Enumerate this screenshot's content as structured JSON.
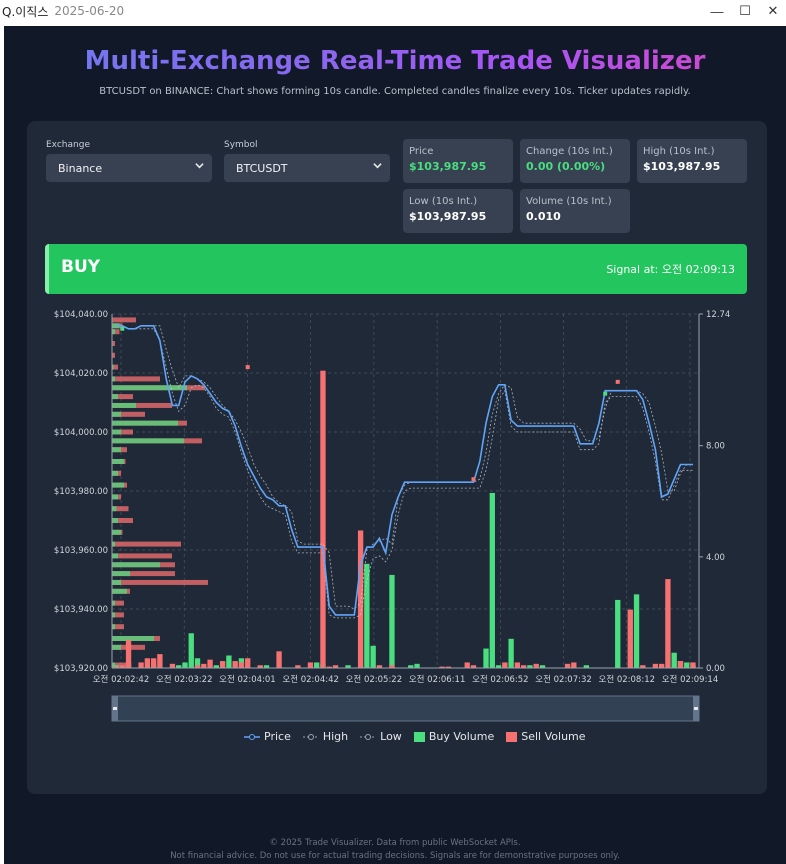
{
  "window": {
    "app_name": "Q.이직스",
    "date": "2025-06-20",
    "minimize": "—",
    "maximize": "☐",
    "close": "✕"
  },
  "header": {
    "title": "Multi-Exchange Real-Time Trade Visualizer",
    "subtitle": "BTCUSDT on BINANCE: Chart shows forming 10s candle. Completed candles finalize every 10s. Ticker updates rapidly."
  },
  "controls": {
    "exchange_label": "Exchange",
    "exchange_value": "Binance",
    "symbol_label": "Symbol",
    "symbol_value": "BTCUSDT"
  },
  "stats": {
    "price_label": "Price",
    "price_value": "$103,987.95",
    "change_label": "Change (10s Int.)",
    "change_value": "0.00 (0.00%)",
    "high_label": "High (10s Int.)",
    "high_value": "$103,987.95",
    "low_label": "Low (10s Int.)",
    "low_value": "$103,987.95",
    "volume_label": "Volume (10s Int.)",
    "volume_value": "0.010"
  },
  "signal": {
    "action": "BUY",
    "signal_at": "Signal at: 오전 02:09:13"
  },
  "legend": {
    "price": "Price",
    "high": "High",
    "low": "Low",
    "buy_volume": "Buy Volume",
    "sell_volume": "Sell Volume"
  },
  "colors": {
    "price": "#60a5fa",
    "buy": "#4ade80",
    "sell": "#f87171",
    "signal_bg": "#22c55e"
  },
  "chart_data": {
    "type": "line",
    "title": "",
    "y_left": {
      "min": 103920,
      "max": 104040,
      "ticks": [
        104040,
        104020,
        104000,
        103980,
        103960,
        103940,
        103920
      ],
      "tick_labels": [
        "$104,040.00",
        "$104,020.00",
        "$104,000.00",
        "$103,980.00",
        "$103,960.00",
        "$103,940.00",
        "$103,920.00"
      ]
    },
    "y_right": {
      "min": 0,
      "max": 12.74,
      "ticks": [
        12.74,
        8.0,
        4.0,
        0.0
      ],
      "tick_labels": [
        "12.74",
        "8.00",
        "4.00",
        "0.00"
      ]
    },
    "x_tick_labels": [
      "오전 02:02:42",
      "오전 02:03:22",
      "오전 02:04:01",
      "오전 02:04:42",
      "오전 02:05:22",
      "오전 02:06:11",
      "오전 02:06:52",
      "오전 02:07:32",
      "오전 02:08:12",
      "오전 02:09:14"
    ],
    "series": [
      {
        "name": "Price",
        "values": [
          104036,
          104036,
          104035,
          104035,
          104036,
          104036,
          104036,
          104031,
          104018,
          104009,
          104009,
          104017,
          104019,
          104018,
          104016,
          104013,
          104010,
          104008,
          104007,
          104002,
          103995,
          103989,
          103985,
          103981,
          103978,
          103977,
          103975,
          103975,
          103967,
          103961,
          103961,
          103961,
          103961,
          103961,
          103941,
          103938,
          103938,
          103938,
          103938,
          103955,
          103961,
          103961,
          103964,
          103959,
          103972,
          103978,
          103983,
          103983,
          103983,
          103983,
          103983,
          103983,
          103983,
          103983,
          103983,
          103983,
          103983,
          103983,
          103990,
          104003,
          104012,
          104016,
          104016,
          104004,
          104002,
          104002,
          104002,
          104002,
          104002,
          104002,
          104002,
          104002,
          104002,
          104002,
          103996,
          103996,
          103996,
          104003,
          104014,
          104014,
          104014,
          104014,
          104014,
          104014,
          104011,
          104003,
          103994,
          103978,
          103979,
          103984,
          103989,
          103989,
          103989
        ]
      },
      {
        "name": "High",
        "values": [
          104036,
          104036,
          104035,
          104035,
          104036,
          104036,
          104036,
          104036,
          104028,
          104021,
          104015,
          104019,
          104019,
          104018,
          104017,
          104015,
          104012,
          104009,
          104007,
          104004,
          104000,
          103995,
          103989,
          103985,
          103982,
          103978,
          103976,
          103975,
          103973,
          103963,
          103962,
          103962,
          103962,
          103962,
          103959,
          103941,
          103941,
          103941,
          103940,
          103942,
          103960,
          103962,
          103963,
          103964,
          103962,
          103978,
          103982,
          103983,
          103983,
          103983,
          103983,
          103983,
          103983,
          103983,
          103983,
          103983,
          103983,
          103983,
          103984,
          103993,
          104006,
          104013,
          104016,
          104015,
          104005,
          104003,
          104003,
          104003,
          104003,
          104003,
          104003,
          104003,
          104003,
          104003,
          104001,
          103997,
          103997,
          103998,
          104008,
          104014,
          104014,
          104014,
          104014,
          104014,
          104013,
          104010,
          104002,
          103993,
          103980,
          103980,
          103986,
          103989,
          103989
        ]
      },
      {
        "name": "Low",
        "values": [
          104036,
          104036,
          104035,
          104035,
          104035,
          104035,
          104035,
          104031,
          104022,
          104013,
          104007,
          104009,
          104015,
          104016,
          104015,
          104012,
          104008,
          104006,
          104005,
          104000,
          103993,
          103987,
          103982,
          103978,
          103975,
          103974,
          103973,
          103972,
          103963,
          103959,
          103959,
          103959,
          103959,
          103959,
          103938,
          103937,
          103937,
          103937,
          103937,
          103938,
          103950,
          103957,
          103958,
          103956,
          103960,
          103972,
          103980,
          103981,
          103981,
          103981,
          103981,
          103981,
          103981,
          103981,
          103981,
          103981,
          103981,
          103981,
          103981,
          103987,
          103998,
          104011,
          104014,
          104002,
          104000,
          104000,
          104000,
          104000,
          104000,
          104000,
          104000,
          104000,
          104000,
          104000,
          103994,
          103994,
          103994,
          103996,
          104010,
          104012,
          104012,
          104012,
          104012,
          104012,
          104008,
          104000,
          103990,
          103977,
          103977,
          103982,
          103987,
          103987,
          103987
        ]
      },
      {
        "name": "Buy Volume",
        "values": [
          0.1,
          0,
          0.2,
          0,
          0,
          0,
          0.15,
          0,
          0,
          0,
          0.1,
          0.2,
          1.25,
          0.35,
          0,
          0,
          0.1,
          0,
          0.45,
          0,
          0.35,
          0,
          0,
          0.05,
          0.1,
          0,
          0,
          0,
          0,
          0,
          0,
          0,
          0.2,
          0.15,
          0,
          0,
          0,
          0.1,
          0,
          0.05,
          3.75,
          0.8,
          0,
          0,
          3.35,
          0,
          0,
          0.1,
          0.15,
          0,
          0,
          0,
          0,
          0,
          0,
          0,
          0,
          0,
          0,
          0.7,
          6.3,
          0.1,
          0,
          1.05,
          0,
          0,
          0.1,
          0,
          0.1,
          0,
          0,
          0,
          0.05,
          0.05,
          0,
          0.1,
          0,
          0,
          0,
          0,
          2.45,
          0,
          0,
          2.65,
          0,
          0,
          0,
          0,
          0,
          0.55,
          0.25,
          0.2,
          0.1
        ]
      },
      {
        "name": "Sell Volume",
        "values": [
          0.05,
          0.1,
          1.0,
          0,
          0.2,
          0.35,
          0.35,
          0.5,
          0,
          0.15,
          0,
          0,
          0,
          0.1,
          0.15,
          0.3,
          0,
          0.25,
          0,
          0.25,
          0.2,
          0.35,
          0,
          0.1,
          0,
          0,
          0.6,
          0,
          0,
          0.1,
          0,
          0.2,
          0,
          10.7,
          0.05,
          0.1,
          0,
          0,
          0,
          4.95,
          0,
          0,
          0.1,
          0,
          0.1,
          0,
          0,
          0,
          0,
          0,
          0,
          0,
          0.05,
          0.05,
          0,
          0,
          0.2,
          0.1,
          0,
          0,
          0,
          0,
          0.2,
          0,
          0.2,
          0.1,
          0,
          0.15,
          0,
          0,
          0,
          0,
          0.15,
          0.2,
          0,
          0,
          0,
          0,
          0,
          0,
          0,
          0,
          2.1,
          0,
          0.1,
          0,
          0.15,
          0.15,
          3.2,
          0,
          0.25,
          0,
          0.2
        ]
      }
    ],
    "volume_profile": [
      {
        "price": 104038,
        "buy": 0,
        "sell": 0.8
      },
      {
        "price": 104036,
        "buy": 0.25,
        "sell": 0.1
      },
      {
        "price": 104034,
        "buy": 0.1,
        "sell": 0.15
      },
      {
        "price": 104030,
        "buy": 0,
        "sell": 0.1
      },
      {
        "price": 104026,
        "buy": 0,
        "sell": 0.1
      },
      {
        "price": 104022,
        "buy": 0.05,
        "sell": 0.15
      },
      {
        "price": 104018,
        "buy": 0.1,
        "sell": 1.5
      },
      {
        "price": 104015,
        "buy": 2.5,
        "sell": 0.6
      },
      {
        "price": 104012,
        "buy": 0.2,
        "sell": 0.5
      },
      {
        "price": 104009,
        "buy": 0.8,
        "sell": 1.2
      },
      {
        "price": 104006,
        "buy": 0.3,
        "sell": 0.8
      },
      {
        "price": 104003,
        "buy": 2.2,
        "sell": 0.3
      },
      {
        "price": 104000,
        "buy": 0.3,
        "sell": 0.4
      },
      {
        "price": 103997,
        "buy": 2.4,
        "sell": 0.6
      },
      {
        "price": 103994,
        "buy": 0.3,
        "sell": 0.2
      },
      {
        "price": 103990,
        "buy": 0.4,
        "sell": 0.05
      },
      {
        "price": 103986,
        "buy": 0.2,
        "sell": 0.1
      },
      {
        "price": 103982,
        "buy": 0.4,
        "sell": 0.1
      },
      {
        "price": 103978,
        "buy": 0.2,
        "sell": 0.1
      },
      {
        "price": 103974,
        "buy": 0.15,
        "sell": 0.4
      },
      {
        "price": 103970,
        "buy": 0.2,
        "sell": 0.5
      },
      {
        "price": 103966,
        "buy": 0.3,
        "sell": 0.05
      },
      {
        "price": 103962,
        "buy": 0.1,
        "sell": 2.2
      },
      {
        "price": 103958,
        "buy": 0.2,
        "sell": 1.8
      },
      {
        "price": 103955,
        "buy": 1.6,
        "sell": 0.5
      },
      {
        "price": 103952,
        "buy": 0.6,
        "sell": 1.5
      },
      {
        "price": 103949,
        "buy": 0.3,
        "sell": 2.9
      },
      {
        "price": 103946,
        "buy": 0.5,
        "sell": 0.1
      },
      {
        "price": 103942,
        "buy": 0.1,
        "sell": 0.3
      },
      {
        "price": 103938,
        "buy": 0.1,
        "sell": 0.3
      },
      {
        "price": 103934,
        "buy": 0.1,
        "sell": 0.3
      },
      {
        "price": 103930,
        "buy": 1.4,
        "sell": 0.2
      },
      {
        "price": 103927,
        "buy": 0.3,
        "sell": 0.8
      },
      {
        "price": 103921,
        "buy": 0.1,
        "sell": 0.5
      }
    ],
    "signal_markers": [
      {
        "index": 1,
        "price": 104035,
        "color": "#4ade80"
      },
      {
        "index": 21,
        "price": 104022,
        "color": "#f87171"
      },
      {
        "index": 57,
        "price": 103984,
        "color": "#f87171"
      },
      {
        "index": 78,
        "price": 104013,
        "color": "#4ade80"
      },
      {
        "index": 80,
        "price": 104017,
        "color": "#f87171"
      }
    ],
    "grid": true,
    "legend_position": "bottom"
  },
  "footer": {
    "line1": "© 2025 Trade Visualizer. Data from public WebSocket APIs.",
    "line2": "Not financial advice. Do not use for actual trading decisions. Signals are for demonstrative purposes only."
  }
}
